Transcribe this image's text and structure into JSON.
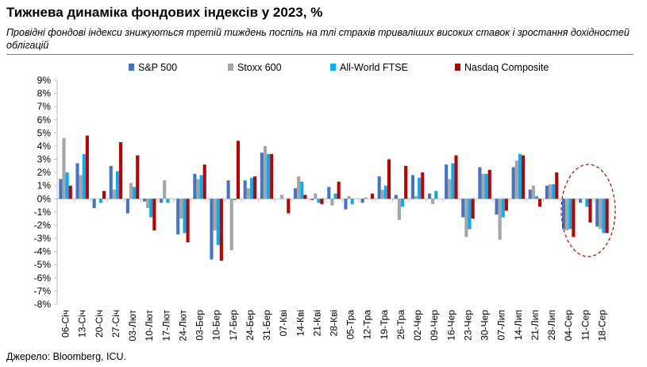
{
  "title": "Тижнева динаміка фондових індексів у 2023, %",
  "subtitle": "Провідні фондові індекси знижуються третій тиждень поспіль на тлі страхів триваліших високих ставок і зростання дохідностей облігацій",
  "source": "Джерело: Bloomberg, ICU.",
  "chart_data": {
    "type": "bar",
    "title": "Тижнева динаміка фондових індексів у 2023, %",
    "xlabel": "",
    "ylabel": "",
    "ylim": [
      -8,
      9
    ],
    "ytick_labels": [
      "-8%",
      "-7%",
      "-6%",
      "-5%",
      "-4%",
      "-3%",
      "-2%",
      "-1%",
      "0%",
      "1%",
      "2%",
      "3%",
      "4%",
      "5%",
      "6%",
      "7%",
      "8%",
      "9%"
    ],
    "legend_position": "top",
    "categories": [
      "06-Січ",
      "13-Січ",
      "20-Січ",
      "27-Січ",
      "03-Лют",
      "10-Лют",
      "17-Лют",
      "24-Лют",
      "03-Бер",
      "10-Бер",
      "17-Бер",
      "24-Бер",
      "31-Бер",
      "07-Кві",
      "14-Кві",
      "21-Кві",
      "28-Кві",
      "05-Тра",
      "12-Тра",
      "19-Тра",
      "26-Тра",
      "02-Чер",
      "09-Чер",
      "16-Чер",
      "23-Чер",
      "30-Чер",
      "07-Лип",
      "14-Лип",
      "21-Лип",
      "28-Лип",
      "04-Сер",
      "11-Сер",
      "18-Сер"
    ],
    "series": [
      {
        "name": "S&P 500",
        "color": "#4472C4",
        "values": [
          1.5,
          2.7,
          -0.7,
          2.5,
          -1.1,
          -0.2,
          -0.3,
          -2.7,
          1.9,
          -4.6,
          1.4,
          1.4,
          3.5,
          0.0,
          0.8,
          -0.1,
          0.9,
          -0.8,
          -0.3,
          1.7,
          0.3,
          1.8,
          0.4,
          2.6,
          -1.4,
          2.4,
          -1.2,
          2.4,
          0.7,
          1.0,
          -2.3,
          -0.3,
          -2.1
        ]
      },
      {
        "name": "Stoxx 600",
        "color": "#A5A5A5",
        "values": [
          4.6,
          1.8,
          0.0,
          0.7,
          1.2,
          -0.7,
          1.4,
          -1.5,
          1.5,
          -2.4,
          -3.9,
          0.8,
          4.0,
          0.3,
          1.7,
          0.4,
          -0.5,
          0.2,
          0.1,
          0.7,
          -1.6,
          0.2,
          -0.4,
          1.5,
          -2.9,
          1.9,
          -3.1,
          2.9,
          1.0,
          1.1,
          -2.4,
          0.0,
          -2.3
        ]
      },
      {
        "name": "All-World FTSE",
        "color": "#00B0F0",
        "values": [
          2.0,
          3.4,
          -0.3,
          2.1,
          0.9,
          -1.4,
          -0.3,
          -2.6,
          1.8,
          -3.5,
          -0.1,
          1.6,
          3.4,
          0.0,
          1.3,
          -0.3,
          0.4,
          -0.4,
          0.0,
          1.0,
          -0.6,
          1.6,
          0.6,
          2.7,
          -2.3,
          1.9,
          -1.4,
          3.4,
          0.2,
          1.1,
          -2.3,
          -0.6,
          -2.6
        ]
      },
      {
        "name": "Nasdaq Composite",
        "color": "#C00000",
        "values": [
          1.0,
          4.8,
          0.6,
          4.3,
          3.3,
          -2.4,
          0.0,
          -3.3,
          2.6,
          -4.7,
          4.4,
          1.7,
          3.4,
          -1.1,
          0.3,
          -0.4,
          1.3,
          0.0,
          0.4,
          3.0,
          2.5,
          2.0,
          0.0,
          3.3,
          -1.5,
          2.2,
          -0.9,
          3.3,
          -0.6,
          2.0,
          -2.9,
          -1.8,
          -2.6
        ]
      }
    ]
  }
}
